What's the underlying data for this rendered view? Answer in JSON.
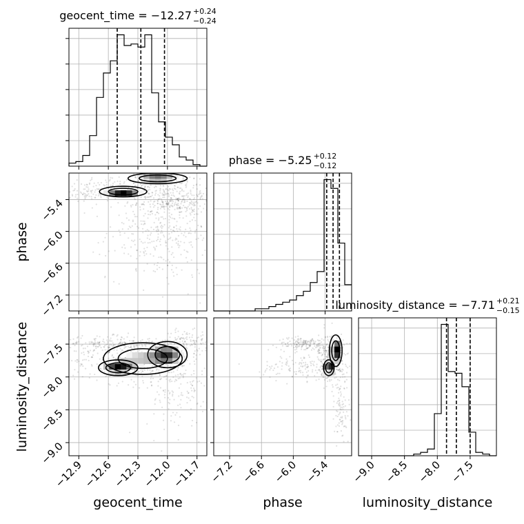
{
  "chart_data": {
    "type": "corner",
    "parameters": [
      {
        "name": "geocent_time",
        "label": "geocent_time",
        "median_text": "−12.27",
        "plus_text": "+0.24",
        "minus_text": "−0.24",
        "quantiles": [
          -12.51,
          -12.27,
          -12.03
        ],
        "range": [
          -13.0,
          -11.6
        ],
        "ticks": [
          -12.9,
          -12.6,
          -12.3,
          -12.0,
          -11.7
        ],
        "tick_labels": [
          "−12.9",
          "−12.6",
          "−12.3",
          "−12.0",
          "−11.7"
        ],
        "hist": [
          2,
          3,
          7,
          20,
          45,
          61,
          69,
          86,
          79,
          80,
          78,
          86,
          48,
          29,
          19,
          14,
          6,
          4,
          1,
          0
        ]
      },
      {
        "name": "phase",
        "label": "phase",
        "median_text": "−5.25",
        "plus_text": "+0.12",
        "minus_text": "−0.12",
        "quantiles": [
          -5.37,
          -5.25,
          -5.13
        ],
        "range": [
          -7.5,
          -4.9
        ],
        "ticks": [
          -7.2,
          -6.6,
          -6.0,
          -5.4
        ],
        "tick_labels": [
          "−7.2",
          "−6.6",
          "−6.0",
          "−5.4"
        ],
        "hist": [
          0,
          0,
          0,
          0,
          0,
          0,
          1,
          1,
          2,
          3,
          4,
          5,
          7,
          9,
          13,
          18,
          60,
          56,
          31,
          12
        ]
      },
      {
        "name": "luminosity_distance",
        "label": "luminosity_distance",
        "median_text": "−7.71",
        "plus_text": "+0.21",
        "minus_text": "−0.15",
        "quantiles": [
          -7.86,
          -7.71,
          -7.5
        ],
        "range": [
          -9.2,
          -7.1
        ],
        "ticks": [
          -9.0,
          -8.5,
          -8.0,
          -7.5
        ],
        "tick_labels": [
          "−9.0",
          "−8.5",
          "−8.0",
          "−7.5"
        ],
        "hist": [
          0,
          0,
          0,
          0,
          0,
          0,
          0,
          0,
          1,
          2,
          4,
          25,
          78,
          50,
          49,
          41,
          14,
          2,
          1,
          0
        ]
      }
    ],
    "value_axis": "hidden",
    "grid": true,
    "contours": [
      {
        "x": 0,
        "y": 1,
        "peaks": [
          {
            "cx": -12.45,
            "cy": -5.25,
            "sx": 0.12,
            "sy": 0.05,
            "w": 1.0
          },
          {
            "cx": -12.1,
            "cy": -5.0,
            "sx": 0.15,
            "sy": 0.05,
            "w": 0.9
          }
        ],
        "cloud": [
          {
            "cx": -12.3,
            "cy": -5.15,
            "sx": 0.35,
            "sy": 0.12,
            "n": 260
          },
          {
            "cx": -11.9,
            "cy": -5.45,
            "sx": 0.2,
            "sy": 0.12,
            "n": 220
          },
          {
            "cx": -12.05,
            "cy": -6.0,
            "sx": 0.28,
            "sy": 0.45,
            "n": 380
          },
          {
            "cx": -12.8,
            "cy": -5.3,
            "sx": 0.15,
            "sy": 0.06,
            "n": 60
          }
        ]
      },
      {
        "x": 0,
        "y": 2,
        "peaks": [
          {
            "cx": -12.5,
            "cy": -7.86,
            "sx": 0.1,
            "sy": 0.06,
            "w": 1.0
          },
          {
            "cx": -12.0,
            "cy": -7.66,
            "sx": 0.1,
            "sy": 0.1,
            "w": 0.8
          },
          {
            "cx": -12.25,
            "cy": -7.72,
            "sx": 0.2,
            "sy": 0.12,
            "w": 0.5
          }
        ],
        "cloud": [
          {
            "cx": -12.3,
            "cy": -7.75,
            "sx": 0.35,
            "sy": 0.18,
            "n": 380
          },
          {
            "cx": -12.6,
            "cy": -7.5,
            "sx": 0.25,
            "sy": 0.06,
            "n": 160
          },
          {
            "cx": -11.85,
            "cy": -8.2,
            "sx": 0.18,
            "sy": 0.35,
            "n": 160
          },
          {
            "cx": -11.8,
            "cy": -7.45,
            "sx": 0.12,
            "sy": 0.08,
            "n": 100
          }
        ]
      },
      {
        "x": 1,
        "y": 2,
        "peaks": [
          {
            "cx": -5.33,
            "cy": -7.86,
            "sx": 0.05,
            "sy": 0.06,
            "w": 1.0
          },
          {
            "cx": -5.2,
            "cy": -7.6,
            "sx": 0.06,
            "sy": 0.12,
            "w": 0.8
          }
        ],
        "cloud": [
          {
            "cx": -5.28,
            "cy": -7.7,
            "sx": 0.12,
            "sy": 0.18,
            "n": 320
          },
          {
            "cx": -5.8,
            "cy": -7.5,
            "sx": 0.25,
            "sy": 0.05,
            "n": 160
          },
          {
            "cx": -5.9,
            "cy": -7.85,
            "sx": 0.35,
            "sy": 0.1,
            "n": 120
          },
          {
            "cx": -5.1,
            "cy": -8.5,
            "sx": 0.12,
            "sy": 0.3,
            "n": 100
          }
        ]
      }
    ]
  }
}
